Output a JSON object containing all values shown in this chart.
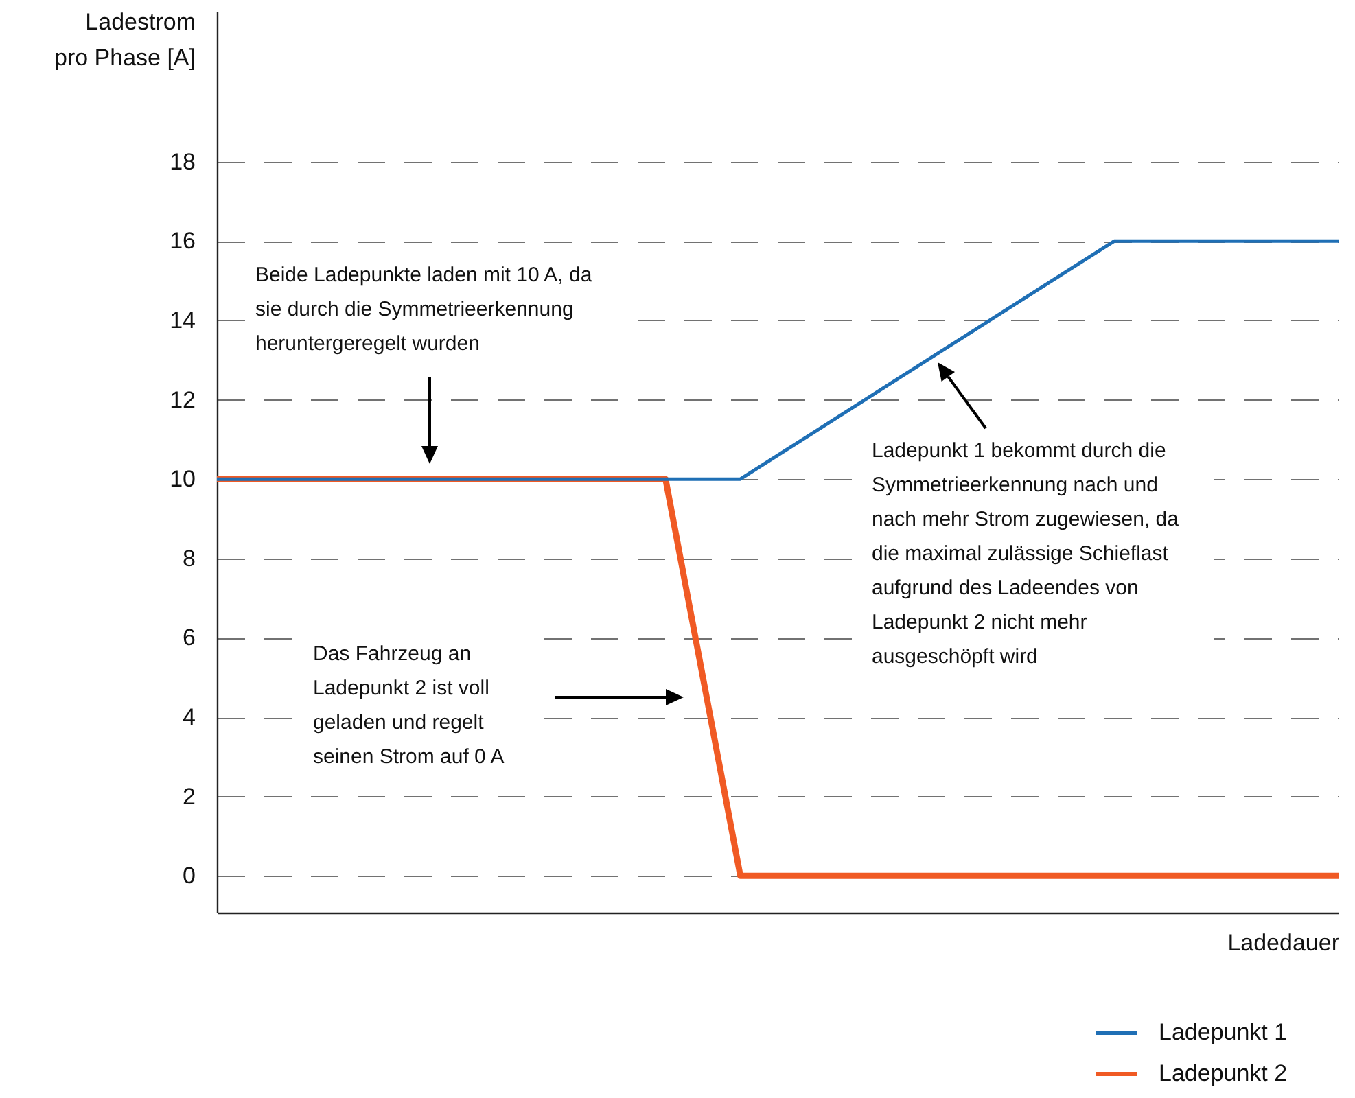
{
  "chart_data": {
    "type": "line",
    "xlabel": "Ladedauer",
    "ylabel": "Ladestrom pro Phase [A]",
    "categories": [
      null,
      null,
      null,
      null,
      null,
      null,
      null,
      null,
      null,
      null,
      null,
      null,
      null,
      null,
      null,
      null
    ],
    "series": [
      {
        "name": "Ladepunkt 1",
        "color": "#1f6fb5",
        "values": [
          10,
          10,
          10,
          10,
          10,
          10,
          10,
          10,
          11.2,
          12.4,
          13.6,
          14.8,
          16,
          16,
          16,
          16
        ]
      },
      {
        "name": "Ladepunkt 2",
        "color": "#f05a24",
        "values": [
          10,
          10,
          10,
          10,
          10,
          10,
          10,
          0,
          0,
          0,
          0,
          0,
          0,
          0,
          0,
          0
        ]
      }
    ],
    "ylim": [
      -0.93,
      21.8
    ],
    "yticks": [
      0,
      2,
      4,
      6,
      8,
      10,
      12,
      14,
      16,
      18
    ],
    "grid": "y",
    "legend": "bottom right",
    "tick_labels": "y",
    "annotations": [
      "Beide Ladepunkte laden mit 10 A, da sie durch die Symmetrieerkennung heruntergeregelt wurden",
      "Das Fahrzeug an Ladepunkt 2 ist voll geladen und regelt seinen Strom auf 0 A",
      "Ladepunkt 1 bekommt durch die Symmetrieerkennung nach und nach mehr Strom zugewiesen, da die maximal zulässige Schieflast aufgrund des Ladeendes von Ladepunkt 2 nicht mehr ausgeschöpft wird"
    ]
  }
}
